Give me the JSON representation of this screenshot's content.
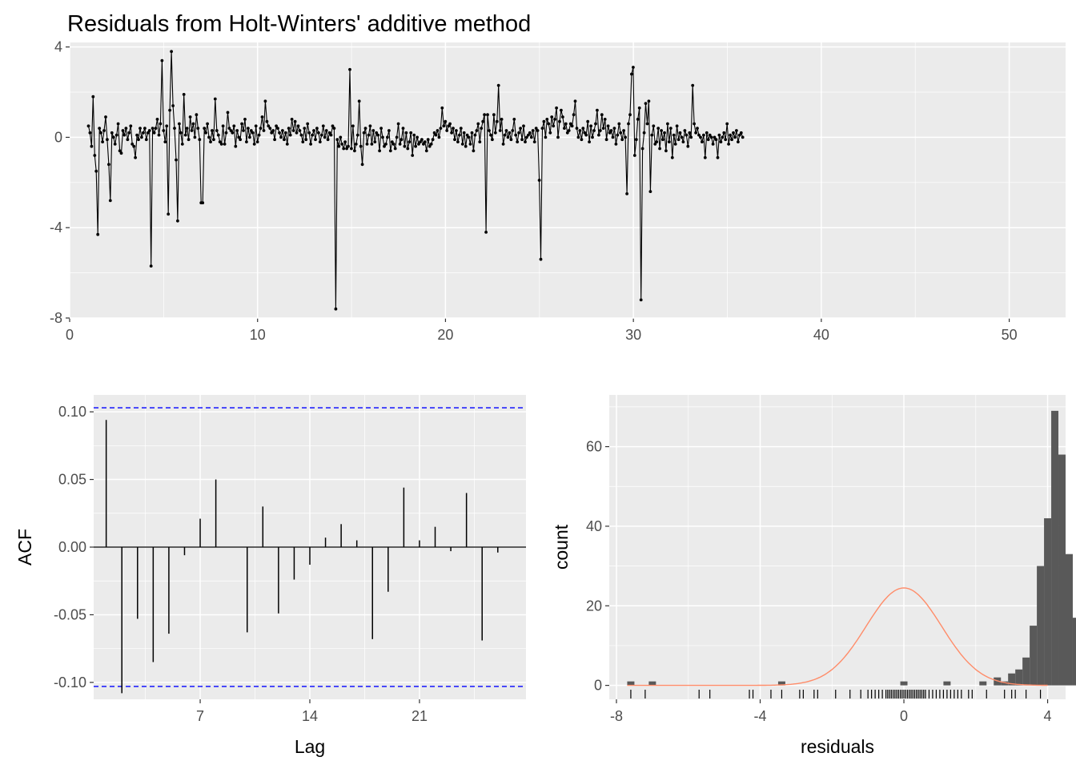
{
  "title": "Residuals from Holt-Winters' additive method",
  "colors": {
    "panel_bg": "#ebebeb",
    "grid_major": "#ffffff",
    "line": "#000000",
    "bar": "#595959",
    "ci_line": "#0000ff",
    "normal_curve": "#ff8c69",
    "tick_text": "#4d4d4d"
  },
  "chart_data": [
    {
      "type": "line",
      "title": "Residuals from Holt-Winters' additive method",
      "xlim": [
        0,
        53
      ],
      "ylim": [
        -8,
        4.2
      ],
      "x_ticks": [
        0,
        10,
        20,
        30,
        40,
        50
      ],
      "x_tick_labels": [
        "0",
        "10",
        "20",
        "30",
        "40",
        "50"
      ],
      "y_ticks": [
        4,
        0,
        -4,
        -8
      ],
      "y_tick_labels": [
        "4",
        "0",
        "-4",
        "-8"
      ],
      "grid": true,
      "x_start": 1.0,
      "x_step": 0.0833,
      "values": [
        0.5,
        0.2,
        -0.4,
        1.8,
        -0.8,
        -1.5,
        -4.3,
        0.4,
        0.2,
        -0.2,
        0.3,
        0.9,
        -0.1,
        -1.2,
        -2.8,
        0.2,
        0.0,
        -0.3,
        0.1,
        0.6,
        -0.6,
        -0.7,
        0.3,
        0.1,
        0.4,
        -0.1,
        0.2,
        0.5,
        -0.3,
        -0.4,
        -0.9,
        0.1,
        -0.1,
        0.4,
        0.0,
        0.2,
        0.4,
        -0.1,
        0.2,
        0.3,
        -5.7,
        0.4,
        0.2,
        0.4,
        0.8,
        0.1,
        0.6,
        3.4,
        0.3,
        -0.2,
        0.5,
        -3.4,
        1.2,
        3.8,
        1.4,
        0.4,
        -1.0,
        -3.7,
        0.6,
        0.2,
        -0.3,
        1.9,
        0.1,
        0.4,
        -0.1,
        0.9,
        0.3,
        0.6,
        0.0,
        1.0,
        0.4,
        -0.1,
        -2.9,
        -2.9,
        0.4,
        0.2,
        0.6,
        0.0,
        -0.2,
        0.3,
        -0.1,
        1.7,
        0.3,
        0.1,
        -0.2,
        -0.3,
        0.5,
        -0.3,
        0.2,
        1.1,
        0.4,
        0.3,
        0.2,
        0.5,
        -0.4,
        0.3,
        0.0,
        -0.1,
        0.6,
        0.3,
        0.8,
        -0.2,
        0.4,
        0.0,
        0.3,
        0.2,
        -0.3,
        0.5,
        -0.2,
        0.1,
        0.4,
        0.9,
        0.3,
        1.6,
        0.7,
        0.5,
        0.4,
        0.2,
        0.3,
        -0.1,
        0.5,
        0.4,
        0.2,
        0.0,
        0.3,
        -0.1,
        0.2,
        -0.3,
        0.4,
        0.1,
        0.8,
        0.3,
        0.7,
        0.2,
        0.5,
        0.3,
        0.1,
        -0.2,
        0.4,
        -0.1,
        0.6,
        0.2,
        -0.3,
        0.1,
        0.3,
        -0.1,
        0.4,
        0.2,
        -0.2,
        0.1,
        0.5,
        0.0,
        0.3,
        -0.1,
        0.2,
        0.1,
        0.5,
        0.4,
        -7.6,
        -0.1,
        -0.4,
        0.0,
        -0.3,
        -0.5,
        -0.2,
        -0.5,
        -0.4,
        3.0,
        -0.5,
        0.5,
        -0.6,
        -0.3,
        0.1,
        1.6,
        -0.4,
        -1.2,
        0.2,
        0.4,
        -0.3,
        0.1,
        0.5,
        -0.3,
        0.3,
        -0.2,
        0.2,
        0.1,
        -0.6,
        0.4,
        0.0,
        -0.4,
        -0.3,
        0.0,
        0.3,
        -0.6,
        -0.2,
        -0.3,
        -0.5,
        0.0,
        0.6,
        -0.3,
        -0.1,
        0.4,
        -0.4,
        0.2,
        -0.5,
        -0.2,
        0.2,
        -0.8,
        0.1,
        -0.4,
        0.0,
        -0.3,
        -0.2,
        -0.1,
        -0.3,
        -0.2,
        -0.6,
        -0.1,
        -0.4,
        -0.3,
        -0.1,
        0.2,
        0.1,
        0.3,
        0.0,
        0.4,
        1.3,
        0.5,
        0.7,
        0.3,
        0.5,
        0.6,
        0.2,
        0.4,
        -0.1,
        0.3,
        -0.2,
        0.1,
        0.4,
        -0.3,
        0.2,
        -0.4,
        0.1,
        0.0,
        -0.3,
        0.2,
        -0.6,
        0.1,
        0.3,
        0.6,
        -0.2,
        0.4,
        0.7,
        1.0,
        -4.2,
        1.0,
        0.3,
        0.1,
        -0.1,
        1.0,
        0.2,
        0.7,
        2.3,
        0.3,
        0.8,
        -0.3,
        0.1,
        0.3,
        0.0,
        0.2,
        -0.1,
        0.3,
        0.8,
        0.1,
        -0.2,
        0.2,
        0.4,
        -0.1,
        0.5,
        -0.2,
        0.0,
        0.1,
        0.2,
        0.0,
        0.3,
        -0.2,
        0.4,
        0.3,
        -1.9,
        -5.4,
        0.4,
        0.7,
        0.0,
        0.8,
        0.6,
        0.2,
        0.9,
        0.5,
        0.8,
        1.3,
        0.0,
        0.7,
        1.2,
        0.9,
        0.4,
        0.6,
        0.2,
        0.3,
        0.6,
        0.5,
        1.0,
        1.6,
        0.4,
        0.0,
        0.3,
        -0.1,
        0.4,
        0.2,
        0.1,
        0.7,
        -0.2,
        0.5,
        0.0,
        0.3,
        0.6,
        1.2,
        0.1,
        0.3,
        1.0,
        0.4,
        0.8,
        -0.1,
        0.5,
        0.2,
        0.3,
        0.0,
        0.4,
        -0.3,
        0.1,
        0.6,
        0.2,
        -0.1,
        0.3,
        0.0,
        -2.5,
        0.6,
        1.0,
        2.8,
        3.1,
        -0.8,
        -0.1,
        0.8,
        1.3,
        -7.2,
        -0.5,
        0.2,
        1.5,
        0.6,
        1.6,
        -2.4,
        0.1,
        0.5,
        -0.3,
        -0.2,
        0.4,
        -0.5,
        0.3,
        -0.1,
        0.2,
        -0.6,
        0.6,
        -0.2,
        0.4,
        -0.9,
        0.1,
        -0.3,
        0.5,
        -0.1,
        0.2,
        0.0,
        -0.2,
        0.3,
        0.1,
        -0.4,
        0.2,
        0.0,
        2.3,
        0.6,
        0.2,
        0.4,
        0.1,
        0.0,
        -0.2,
        0.1,
        -0.9,
        0.2,
        -0.1,
        0.1,
        0.0,
        -0.3,
        0.0,
        -0.1,
        -0.9,
        0.1,
        -0.2,
        0.0,
        0.2,
        -0.1,
        0.6,
        -0.3,
        0.1,
        -0.1,
        0.2,
        0.0,
        0.3,
        -0.2,
        0.1,
        0.2,
        0.0
      ]
    },
    {
      "type": "bar",
      "subtype": "acf",
      "xlabel": "Lag",
      "ylabel": "ACF",
      "xlim": [
        0.2,
        27.8
      ],
      "ylim": [
        -0.1125,
        0.1125
      ],
      "x_ticks": [
        7,
        14,
        21
      ],
      "x_tick_labels": [
        "7",
        "14",
        "21"
      ],
      "y_ticks": [
        0.1,
        0.05,
        0.0,
        -0.05,
        -0.1
      ],
      "y_tick_labels": [
        "0.10",
        "0.05",
        "0.00",
        "-0.05",
        "-0.10"
      ],
      "ci_bounds": [
        0.103,
        -0.103
      ],
      "grid": true,
      "lags": [
        1,
        2,
        3,
        4,
        5,
        6,
        7,
        8,
        9,
        10,
        11,
        12,
        13,
        14,
        15,
        16,
        17,
        18,
        19,
        20,
        21,
        22,
        23,
        24,
        25,
        26
      ],
      "values": [
        0.094,
        -0.108,
        -0.053,
        -0.085,
        -0.064,
        -0.006,
        0.021,
        0.05,
        0.0,
        -0.063,
        0.03,
        -0.049,
        -0.024,
        -0.013,
        0.007,
        0.017,
        0.005,
        -0.068,
        -0.033,
        0.044,
        0.005,
        0.015,
        -0.003,
        0.04,
        -0.069,
        -0.004
      ]
    },
    {
      "type": "bar",
      "subtype": "histogram",
      "xlabel": "residuals",
      "ylabel": "count",
      "xlim": [
        -8.2,
        4.5
      ],
      "ylim": [
        -3.5,
        73
      ],
      "x_ticks": [
        -8,
        -4,
        0,
        4
      ],
      "x_tick_labels": [
        "-8",
        "-4",
        "0",
        "4"
      ],
      "y_ticks": [
        0,
        20,
        40,
        60
      ],
      "y_tick_labels": [
        "0",
        "20",
        "40",
        "60"
      ],
      "grid": true,
      "bin_start": -7.7,
      "bin_width": 0.2,
      "counts": [
        1,
        0,
        0,
        1,
        0,
        0,
        0,
        0,
        0,
        0,
        0,
        0,
        0,
        0,
        0,
        0,
        0,
        0,
        0,
        0,
        0,
        1,
        0,
        0,
        0,
        0,
        0,
        0,
        0,
        0,
        0,
        0,
        0,
        0,
        0,
        0,
        0,
        0,
        1,
        0,
        0,
        0,
        0,
        0,
        1,
        0,
        0,
        0,
        0,
        1,
        0,
        2,
        1,
        3,
        4,
        7,
        15,
        30,
        42,
        69,
        58,
        33,
        17,
        13,
        9,
        5,
        4,
        3,
        6,
        2,
        1,
        2,
        0,
        0,
        0,
        1,
        0,
        0,
        0,
        1,
        0,
        0,
        0,
        0,
        0,
        0,
        0,
        0,
        0,
        0,
        0,
        1
      ],
      "normal_curve": {
        "mean": 0.0,
        "sd": 1.05,
        "peak": 24.5
      },
      "rug": [
        -7.6,
        -7.2,
        -5.7,
        -5.4,
        -4.3,
        -4.2,
        -3.7,
        -3.4,
        -2.9,
        -2.8,
        -2.5,
        -2.4,
        -1.9,
        -1.5,
        -1.2,
        -1.0,
        -0.9,
        -0.8,
        -0.7,
        -0.6,
        -0.5,
        -0.45,
        -0.4,
        -0.35,
        -0.3,
        -0.25,
        -0.2,
        -0.15,
        -0.1,
        -0.05,
        0.0,
        0.05,
        0.1,
        0.15,
        0.2,
        0.25,
        0.3,
        0.35,
        0.4,
        0.45,
        0.5,
        0.55,
        0.6,
        0.7,
        0.8,
        0.9,
        1.0,
        1.1,
        1.2,
        1.3,
        1.4,
        1.5,
        1.6,
        1.8,
        1.9,
        2.3,
        2.8,
        3.0,
        3.1,
        3.4,
        3.8
      ]
    }
  ]
}
